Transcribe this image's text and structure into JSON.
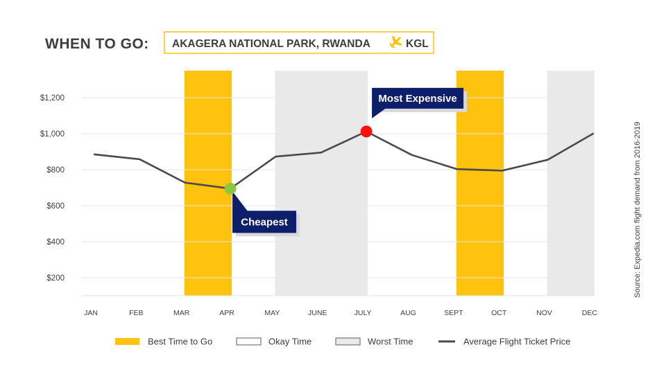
{
  "header": {
    "title": "WHEN TO GO:",
    "place": "AKAGERA NATIONAL PARK, RWANDA",
    "airport": "KGL"
  },
  "source": "Source: Expedia.com flight demand from 2016-2019",
  "colors": {
    "best": "#FFC20E",
    "worst": "#E9E9E9",
    "line": "#4A4A4A",
    "navy": "#0D1E6B",
    "cheapest": "#8DC63F",
    "expensive": "#FF1010"
  },
  "chart_data": {
    "type": "line",
    "categories": [
      "JAN",
      "FEB",
      "MAR",
      "APR",
      "MAY",
      "JUNE",
      "JULY",
      "AUG",
      "SEPT",
      "OCT",
      "NOV",
      "DEC"
    ],
    "series": [
      {
        "name": "Average Flight Ticket Price",
        "values": [
          885,
          858,
          728,
          695,
          873,
          895,
          1012,
          882,
          803,
          795,
          855,
          1000
        ]
      }
    ],
    "ylim": [
      100,
      1350
    ],
    "yticks": [
      200,
      400,
      600,
      800,
      1000,
      1200
    ],
    "ytick_labels": [
      "$200",
      "$400",
      "$600",
      "$800",
      "$1,000",
      "$1,200"
    ],
    "bands": [
      {
        "from": "MAR",
        "to": "APR",
        "kind": "best"
      },
      {
        "from": "MAY",
        "to": "JULY",
        "kind": "worst"
      },
      {
        "from": "SEPT",
        "to": "OCT",
        "kind": "best"
      },
      {
        "from": "NOV",
        "to": "DEC",
        "kind": "worst"
      }
    ],
    "annotations": [
      {
        "text": "Cheapest",
        "month": "APR",
        "kind": "cheapest"
      },
      {
        "text": "Most Expensive",
        "month": "JULY",
        "kind": "expensive"
      }
    ],
    "legend": [
      {
        "label": "Best Time to Go",
        "kind": "best"
      },
      {
        "label": "Okay Time",
        "kind": "okay"
      },
      {
        "label": "Worst Time",
        "kind": "worst"
      },
      {
        "label": "Average Flight Ticket Price",
        "kind": "line"
      }
    ],
    "grid": true,
    "legend_position": "bottom"
  }
}
